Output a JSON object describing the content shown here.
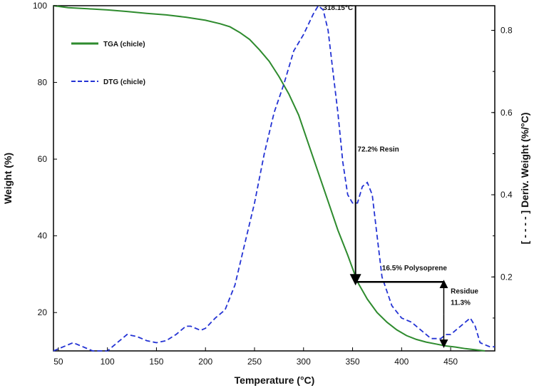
{
  "chart_data": {
    "type": "line",
    "title": "",
    "xlabel": "Temperature (°C)",
    "ylabel": "Weight (%)",
    "y2label": "[ - - - - ] Deriv. Weight (%/°C)",
    "xlim": [
      45,
      495
    ],
    "ylim": [
      10,
      100
    ],
    "y2lim": [
      0.02,
      0.86
    ],
    "x_ticks": [
      50,
      100,
      150,
      200,
      250,
      300,
      350,
      400,
      450
    ],
    "y_ticks": [
      20,
      40,
      60,
      80,
      100
    ],
    "y2_ticks": [
      0.2,
      0.4,
      0.6,
      0.8
    ],
    "legend": {
      "position": "top-left",
      "entries": [
        "TGA (chicle)",
        "DTG (chicle)"
      ]
    },
    "series": [
      {
        "name": "TGA (chicle)",
        "axis": "left",
        "color": "#2e8b2e",
        "style": "solid",
        "x": [
          45,
          60,
          80,
          100,
          120,
          140,
          160,
          180,
          200,
          215,
          225,
          235,
          245,
          255,
          265,
          275,
          285,
          295,
          305,
          315,
          325,
          335,
          345,
          355,
          365,
          375,
          385,
          395,
          405,
          415,
          425,
          435,
          445,
          455,
          465,
          475,
          485
        ],
        "y": [
          100,
          99.5,
          99.2,
          98.9,
          98.5,
          98.0,
          97.6,
          97.0,
          96.2,
          95.3,
          94.5,
          93.0,
          91.2,
          88.5,
          85.5,
          81.5,
          77.0,
          71.5,
          64.0,
          56.5,
          49.0,
          41.5,
          35.0,
          28.0,
          23.5,
          20.0,
          17.5,
          15.5,
          14.0,
          13.0,
          12.3,
          11.8,
          11.3,
          11.0,
          10.6,
          10.3,
          10.0
        ]
      },
      {
        "name": "DTG (chicle)",
        "axis": "right",
        "color": "#2433d4",
        "style": "dashed",
        "x": [
          45,
          55,
          65,
          75,
          85,
          100,
          110,
          120,
          130,
          140,
          150,
          160,
          170,
          180,
          185,
          195,
          200,
          210,
          220,
          230,
          240,
          250,
          260,
          270,
          280,
          290,
          300,
          310,
          315,
          320,
          325,
          330,
          335,
          340,
          345,
          350,
          355,
          360,
          365,
          370,
          375,
          380,
          390,
          400,
          410,
          420,
          430,
          440,
          445,
          450,
          455,
          460,
          465,
          470,
          475,
          480,
          490,
          495
        ],
        "y": [
          0.02,
          0.03,
          0.04,
          0.03,
          0.02,
          0.02,
          0.04,
          0.06,
          0.055,
          0.045,
          0.04,
          0.045,
          0.06,
          0.08,
          0.08,
          0.07,
          0.075,
          0.1,
          0.12,
          0.18,
          0.28,
          0.38,
          0.5,
          0.6,
          0.67,
          0.75,
          0.79,
          0.84,
          0.86,
          0.85,
          0.8,
          0.7,
          0.6,
          0.48,
          0.4,
          0.38,
          0.38,
          0.42,
          0.43,
          0.4,
          0.3,
          0.2,
          0.13,
          0.1,
          0.09,
          0.07,
          0.05,
          0.05,
          0.06,
          0.06,
          0.07,
          0.08,
          0.09,
          0.1,
          0.08,
          0.04,
          0.03,
          0.03
        ]
      }
    ],
    "annotations": [
      {
        "text": "318.15°C",
        "x": 320,
        "y2": 0.85
      },
      {
        "text": "72.2% Resin",
        "x": 355,
        "y": 62
      },
      {
        "text": "16.5% Polysoprene",
        "x": 380,
        "y": 31
      },
      {
        "text": "Residue",
        "x": 450,
        "y": 25
      },
      {
        "text": "11.3%",
        "x": 450,
        "y": 22
      }
    ],
    "markers": {
      "resin_arrow": {
        "x": 353,
        "y_top": 100,
        "y_bottom": 28
      },
      "poly_line": {
        "x_start": 353,
        "x_end": 443,
        "y": 28
      },
      "residue_arrow": {
        "x": 443,
        "y_top": 28,
        "y_bottom": 11.3
      }
    }
  }
}
